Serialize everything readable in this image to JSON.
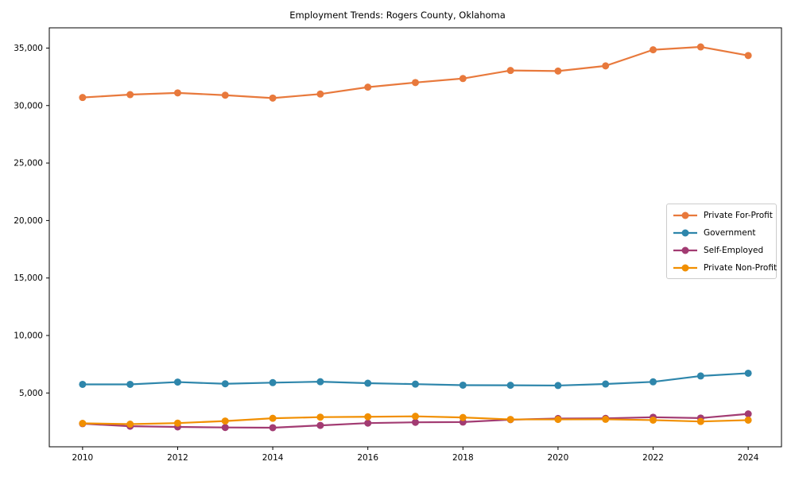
{
  "title": "Employment Trends: Rogers County, Oklahoma",
  "chart_data": {
    "type": "line",
    "title": "Employment Trends: Rogers County, Oklahoma",
    "xlabel": "",
    "ylabel": "",
    "x": [
      2010,
      2011,
      2012,
      2013,
      2014,
      2015,
      2016,
      2017,
      2018,
      2019,
      2020,
      2021,
      2022,
      2023,
      2024
    ],
    "series": [
      {
        "name": "Private For-Profit",
        "color": "#E8793C",
        "values": [
          30700,
          30950,
          31100,
          30900,
          30650,
          31000,
          31600,
          32000,
          32350,
          33050,
          33000,
          33450,
          34850,
          35100,
          34350
        ]
      },
      {
        "name": "Government",
        "color": "#2E86AB",
        "values": [
          5750,
          5750,
          5950,
          5800,
          5900,
          5980,
          5850,
          5770,
          5680,
          5670,
          5650,
          5780,
          5970,
          6480,
          6720
        ]
      },
      {
        "name": "Self-Employed",
        "color": "#A23B72",
        "values": [
          2330,
          2110,
          2050,
          2000,
          1980,
          2180,
          2380,
          2450,
          2470,
          2680,
          2780,
          2790,
          2890,
          2820,
          3180
        ]
      },
      {
        "name": "Private Non-Profit",
        "color": "#F18F01",
        "values": [
          2360,
          2290,
          2380,
          2560,
          2800,
          2900,
          2930,
          2970,
          2870,
          2700,
          2700,
          2710,
          2640,
          2520,
          2640
        ]
      }
    ],
    "xticks": [
      2010,
      2012,
      2014,
      2016,
      2018,
      2020,
      2022,
      2024
    ],
    "xtick_labels": [
      "2010",
      "2012",
      "2014",
      "2016",
      "2018",
      "2020",
      "2022",
      "2024"
    ],
    "yticks": [
      5000,
      10000,
      15000,
      20000,
      25000,
      30000,
      35000
    ],
    "ytick_labels": [
      "5,000",
      "10,000",
      "15,000",
      "20,000",
      "25,000",
      "30,000",
      "35,000"
    ],
    "xlim": [
      2009.3,
      2024.7
    ],
    "ylim": [
      320,
      36760
    ],
    "grid": false,
    "marker": "circle",
    "legend_position": "center right"
  }
}
